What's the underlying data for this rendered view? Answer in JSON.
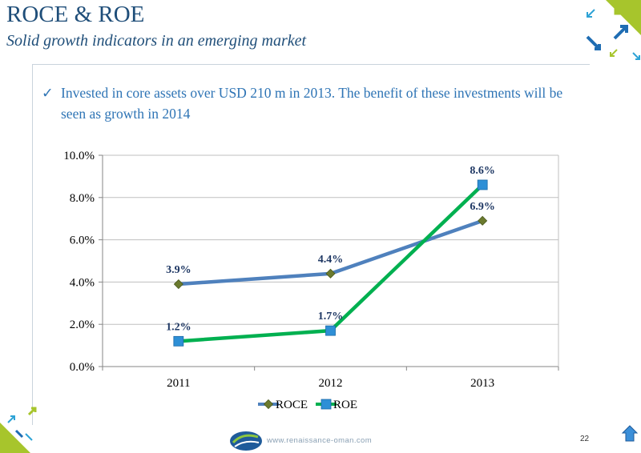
{
  "title": "ROCE & ROE",
  "subtitle": "Solid growth indicators in an emerging market",
  "bullet": {
    "icon": "checkmark-icon",
    "text": "Invested in core assets over USD 210 m in 2013. The benefit of these investments will be seen as growth in 2014"
  },
  "chart_data": {
    "type": "line",
    "categories": [
      "2011",
      "2012",
      "2013"
    ],
    "series": [
      {
        "name": "ROCE",
        "values": [
          3.9,
          4.4,
          6.9
        ],
        "labels": [
          "3.9%",
          "4.4%",
          "6.9%"
        ],
        "color": "#4f81bd",
        "marker": "diamond",
        "marker_color": "#6b7a2e"
      },
      {
        "name": "ROE",
        "values": [
          1.2,
          1.7,
          8.6
        ],
        "labels": [
          "1.2%",
          "1.7%",
          "8.6%"
        ],
        "color": "#00b050",
        "marker": "square",
        "marker_color": "#2e8fd6"
      }
    ],
    "y_ticks": [
      "0.0%",
      "2.0%",
      "4.0%",
      "6.0%",
      "8.0%",
      "10.0%"
    ],
    "ylim": [
      0,
      10
    ],
    "grid": true,
    "legend": "bottom",
    "label_color": "#1f3864"
  },
  "footer": {
    "url": "www.renaissance-oman.com",
    "page_number": "22"
  },
  "colors": {
    "brand_blue": "#1f4e79",
    "accent_green": "#a7c52c",
    "accent_cyan": "#2ea3d6"
  }
}
